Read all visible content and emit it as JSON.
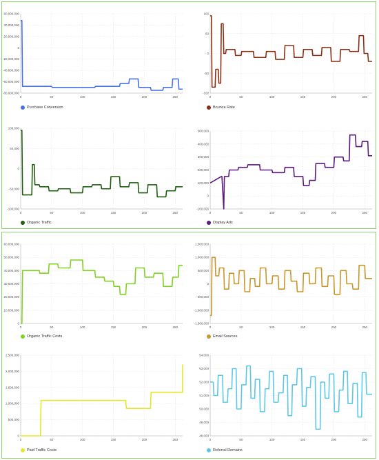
{
  "chart_data": [
    {
      "id": "purchase-conversion",
      "type": "line",
      "title": "",
      "xlabel": "",
      "ylabel": "",
      "legend": "Purchase Conversion",
      "color": "#4a72e8",
      "x_ticks": [
        0,
        50,
        100,
        150,
        200,
        250
      ],
      "x_tick_labels": [
        "0",
        "50",
        "100",
        "150",
        "200",
        "250"
      ],
      "xlim": [
        0,
        262
      ],
      "ylim": [
        -80000000,
        60000000
      ],
      "y_ticks": [
        60000000,
        40000000,
        20000000,
        0,
        -20000000,
        -40000000,
        -60000000,
        -80000000
      ],
      "y_tick_labels": [
        "60,000,000",
        "40,000,000",
        "20,000,000",
        "0",
        "-20,000,000",
        "-40,000,000",
        "-60,000,000",
        "-80,000,000"
      ],
      "series": [
        {
          "x": [
            0,
            2,
            3,
            30,
            31,
            50,
            51,
            120,
            121,
            160,
            161,
            175,
            176,
            190,
            191,
            210,
            211,
            230,
            231,
            245,
            246,
            255,
            256,
            262
          ],
          "y": [
            48000000,
            48000000,
            -68000000,
            -68000000,
            -68000000,
            -68000000,
            -70000000,
            -70000000,
            -68000000,
            -68000000,
            -63000000,
            -63000000,
            -55000000,
            -55000000,
            -70000000,
            -70000000,
            -75000000,
            -75000000,
            -70000000,
            -70000000,
            -55000000,
            -55000000,
            -73000000,
            -73000000
          ]
        }
      ]
    },
    {
      "id": "bounce-rate",
      "type": "line",
      "title": "",
      "xlabel": "",
      "ylabel": "",
      "legend": "Bounce Rate",
      "color": "#8b2e12",
      "x_ticks": [
        0,
        50,
        100,
        150,
        200,
        250
      ],
      "x_tick_labels": [
        "0",
        "50",
        "100",
        "150",
        "200",
        "250"
      ],
      "xlim": [
        0,
        262
      ],
      "ylim": [
        -100,
        100
      ],
      "y_ticks": [
        100,
        50,
        0,
        -50,
        -100
      ],
      "y_tick_labels": [
        "100",
        "50",
        "0",
        "-50",
        "-100"
      ],
      "series": [
        {
          "x": [
            0,
            2,
            3,
            8,
            9,
            13,
            14,
            17,
            18,
            21,
            22,
            25,
            26,
            40,
            41,
            50,
            51,
            70,
            71,
            90,
            91,
            105,
            106,
            120,
            121,
            135,
            136,
            150,
            151,
            165,
            166,
            180,
            181,
            195,
            196,
            210,
            211,
            225,
            226,
            240,
            241,
            248,
            249,
            255,
            256,
            262
          ],
          "y": [
            95,
            95,
            -85,
            -85,
            -40,
            -40,
            -75,
            -75,
            75,
            75,
            0,
            0,
            10,
            10,
            -5,
            -5,
            5,
            5,
            -10,
            -10,
            5,
            5,
            -15,
            -15,
            20,
            20,
            -10,
            -10,
            10,
            10,
            -5,
            -5,
            15,
            15,
            -20,
            -20,
            10,
            10,
            5,
            5,
            45,
            45,
            0,
            0,
            -20,
            -20
          ]
        }
      ]
    },
    {
      "id": "organic-traffic",
      "type": "line",
      "title": "",
      "xlabel": "",
      "ylabel": "",
      "legend": "Organic Traffic",
      "color": "#1f5e0f",
      "x_ticks": [
        0,
        50,
        100,
        150,
        200,
        250
      ],
      "x_tick_labels": [
        "0",
        "50",
        "100",
        "150",
        "200",
        "250"
      ],
      "xlim": [
        0,
        262
      ],
      "ylim": [
        -100,
        100
      ],
      "y_ticks": [
        100,
        50,
        0,
        -50,
        -100
      ],
      "y_tick_labels": [
        "100,000",
        "50,000",
        "0",
        "-50,000",
        "-100,000"
      ],
      "series": [
        {
          "x": [
            0,
            2,
            3,
            18,
            19,
            22,
            23,
            30,
            31,
            45,
            46,
            60,
            61,
            80,
            81,
            100,
            101,
            115,
            116,
            130,
            131,
            145,
            146,
            160,
            161,
            175,
            176,
            190,
            191,
            205,
            206,
            220,
            221,
            235,
            236,
            250,
            251,
            262
          ],
          "y": [
            95,
            95,
            -65,
            -65,
            10,
            10,
            -40,
            -40,
            -45,
            -45,
            -55,
            -55,
            -50,
            -50,
            -60,
            -60,
            -45,
            -45,
            -40,
            -40,
            -50,
            -50,
            -20,
            -20,
            -45,
            -45,
            -35,
            -35,
            -60,
            -60,
            -40,
            -40,
            -70,
            -70,
            -55,
            -55,
            -45,
            -45
          ]
        }
      ]
    },
    {
      "id": "display-ads",
      "type": "line",
      "title": "",
      "xlabel": "",
      "ylabel": "",
      "legend": "Display Ads",
      "color": "#5b1a7a",
      "x_ticks": [
        0,
        50,
        100,
        150,
        200,
        250
      ],
      "x_tick_labels": [
        "0",
        "50",
        "100",
        "150",
        "200",
        "250"
      ],
      "xlim": [
        0,
        262
      ],
      "ylim": [
        -100000,
        500000
      ],
      "y_ticks": [
        500000,
        400000,
        300000,
        200000,
        100000,
        0,
        -100000
      ],
      "y_tick_labels": [
        "500,000",
        "400,000",
        "300,000",
        "200,000",
        "100,000",
        "0",
        "-100,000"
      ],
      "series": [
        {
          "x": [
            0,
            18,
            19,
            22,
            23,
            30,
            31,
            45,
            46,
            60,
            61,
            80,
            81,
            100,
            101,
            120,
            121,
            135,
            136,
            150,
            151,
            160,
            161,
            170,
            171,
            185,
            186,
            200,
            201,
            215,
            216,
            225,
            226,
            235,
            236,
            245,
            246,
            255,
            256,
            262
          ],
          "y": [
            100000,
            150000,
            150000,
            -100000,
            150000,
            150000,
            200000,
            200000,
            220000,
            220000,
            240000,
            240000,
            200000,
            200000,
            180000,
            180000,
            220000,
            220000,
            150000,
            150000,
            80000,
            80000,
            120000,
            120000,
            250000,
            250000,
            220000,
            220000,
            300000,
            300000,
            270000,
            270000,
            470000,
            470000,
            380000,
            380000,
            420000,
            420000,
            310000,
            310000
          ]
        }
      ]
    },
    {
      "id": "organic-traffic-costs",
      "type": "line",
      "title": "",
      "xlabel": "",
      "ylabel": "",
      "legend": "Organic Traffic Costs",
      "color": "#7ed321",
      "x_ticks": [
        0,
        50,
        100,
        150,
        200,
        250
      ],
      "x_tick_labels": [
        "0",
        "50",
        "100",
        "150",
        "200",
        "250"
      ],
      "xlim": [
        0,
        262
      ],
      "ylim": [
        0,
        60000000
      ],
      "y_ticks": [
        60000000,
        50000000,
        40000000,
        30000000,
        20000000,
        10000000,
        0
      ],
      "y_tick_labels": [
        "60,000,000",
        "50,000,000",
        "40,000,000",
        "30,000,000",
        "20,000,000",
        "10,000,000",
        "0"
      ],
      "series": [
        {
          "x": [
            0,
            2,
            3,
            30,
            31,
            45,
            46,
            60,
            61,
            80,
            81,
            100,
            101,
            120,
            121,
            135,
            136,
            150,
            151,
            160,
            161,
            170,
            171,
            185,
            186,
            200,
            201,
            215,
            216,
            230,
            231,
            245,
            246,
            255,
            256,
            262
          ],
          "y": [
            0,
            0,
            40000000,
            40000000,
            38000000,
            38000000,
            45000000,
            45000000,
            42000000,
            42000000,
            48000000,
            48000000,
            40000000,
            40000000,
            35000000,
            35000000,
            32000000,
            32000000,
            28000000,
            28000000,
            22000000,
            22000000,
            30000000,
            30000000,
            42000000,
            42000000,
            35000000,
            35000000,
            38000000,
            38000000,
            28000000,
            28000000,
            35000000,
            35000000,
            44000000,
            44000000
          ]
        }
      ]
    },
    {
      "id": "email-sources",
      "type": "line",
      "title": "",
      "xlabel": "",
      "ylabel": "",
      "legend": "Email Sources",
      "color": "#c9962a",
      "x_ticks": [
        0,
        50,
        100,
        150,
        200,
        250
      ],
      "x_tick_labels": [
        "0",
        "50",
        "100",
        "150",
        "200",
        "250"
      ],
      "xlim": [
        0,
        262
      ],
      "ylim": [
        -1500000,
        1500000
      ],
      "y_ticks": [
        1500000,
        1000000,
        500000,
        0,
        -500000,
        -1000000,
        -1500000
      ],
      "y_tick_labels": [
        "1,500,000",
        "1,000,000",
        "500,000",
        "0",
        "-500,000",
        "-1,000,000",
        "-1,500,000"
      ],
      "series": [
        {
          "x": [
            0,
            2,
            3,
            8,
            9,
            14,
            15,
            22,
            23,
            30,
            31,
            38,
            39,
            46,
            47,
            55,
            56,
            64,
            65,
            72,
            73,
            80,
            81,
            90,
            91,
            100,
            101,
            110,
            111,
            120,
            121,
            130,
            131,
            140,
            141,
            150,
            151,
            160,
            161,
            170,
            171,
            180,
            181,
            190,
            191,
            200,
            201,
            210,
            211,
            220,
            221,
            230,
            231,
            240,
            241,
            250,
            251,
            262
          ],
          "y": [
            -1200000,
            -1200000,
            1000000,
            1000000,
            300000,
            300000,
            600000,
            600000,
            -200000,
            -200000,
            400000,
            400000,
            0,
            0,
            500000,
            500000,
            -300000,
            -300000,
            200000,
            200000,
            -100000,
            -100000,
            600000,
            600000,
            0,
            0,
            300000,
            300000,
            -200000,
            -200000,
            500000,
            500000,
            100000,
            100000,
            -300000,
            -300000,
            400000,
            400000,
            0,
            0,
            600000,
            600000,
            -100000,
            -100000,
            300000,
            300000,
            -400000,
            -400000,
            500000,
            500000,
            0,
            0,
            -200000,
            -200000,
            700000,
            700000,
            200000,
            200000
          ]
        }
      ]
    },
    {
      "id": "paid-traffic-costs",
      "type": "line",
      "title": "",
      "xlabel": "",
      "ylabel": "",
      "legend": "Paid Traffic Costs",
      "color": "#e6e62a",
      "x_ticks": [
        0,
        50,
        100,
        150,
        200,
        250
      ],
      "x_tick_labels": [
        "0",
        "50",
        "100",
        "150",
        "200",
        "250"
      ],
      "xlim": [
        0,
        262
      ],
      "ylim": [
        0,
        2500000
      ],
      "y_ticks": [
        2500000,
        2000000,
        1500000,
        1000000,
        500000,
        0
      ],
      "y_tick_labels": [
        "2,500,000",
        "2,000,000",
        "1,500,000",
        "1,000,000",
        "500,000",
        "0"
      ],
      "series": [
        {
          "x": [
            0,
            32,
            33,
            90,
            91,
            170,
            171,
            210,
            211,
            280,
            281,
            290,
            291,
            262
          ],
          "y": [
            0,
            0,
            1100000,
            1100000,
            1100000,
            1100000,
            850000,
            850000,
            1350000,
            1350000,
            2200000,
            2200000,
            1850000,
            1850000
          ]
        }
      ]
    },
    {
      "id": "referral-domains",
      "type": "line",
      "title": "",
      "xlabel": "",
      "ylabel": "",
      "legend": "Referral Domains",
      "color": "#5cc8e8",
      "x_ticks": [
        0,
        50,
        100,
        150,
        200,
        250
      ],
      "x_tick_labels": [
        "0",
        "50",
        "100",
        "150",
        "200",
        "250"
      ],
      "xlim": [
        0,
        262
      ],
      "ylim": [
        48000,
        54000
      ],
      "y_ticks": [
        54000,
        53000,
        52000,
        51000,
        50000,
        49000,
        48000
      ],
      "y_tick_labels": [
        "54,000",
        "53,000",
        "52,000",
        "51,000",
        "50,000",
        "49,000",
        "48,000"
      ],
      "series": [
        {
          "x": [
            0,
            5,
            6,
            12,
            13,
            20,
            21,
            28,
            29,
            35,
            36,
            42,
            43,
            50,
            51,
            58,
            59,
            65,
            66,
            72,
            73,
            80,
            81,
            88,
            89,
            95,
            96,
            102,
            103,
            110,
            111,
            118,
            119,
            125,
            126,
            132,
            133,
            140,
            141,
            148,
            149,
            155,
            156,
            162,
            163,
            170,
            171,
            178,
            179,
            185,
            186,
            192,
            193,
            200,
            201,
            208,
            209,
            215,
            216,
            222,
            223,
            230,
            231,
            238,
            239,
            245,
            246,
            252,
            253,
            262
          ],
          "y": [
            52000,
            52000,
            51000,
            51000,
            52500,
            52500,
            50500,
            50500,
            51500,
            51500,
            53000,
            53000,
            50000,
            50000,
            51800,
            51800,
            53200,
            53200,
            50800,
            50800,
            52200,
            52200,
            49800,
            49800,
            51500,
            51500,
            52800,
            52800,
            50500,
            50500,
            51200,
            51200,
            52500,
            52500,
            49500,
            49500,
            51800,
            51800,
            53000,
            53000,
            50200,
            50200,
            51600,
            51600,
            52400,
            52400,
            48500,
            48500,
            52000,
            52000,
            50800,
            50800,
            52600,
            52600,
            49800,
            49800,
            51400,
            51400,
            52800,
            52800,
            50400,
            50400,
            51900,
            51900,
            49400,
            49400,
            52700,
            52700,
            51100,
            51100
          ]
        }
      ]
    }
  ]
}
